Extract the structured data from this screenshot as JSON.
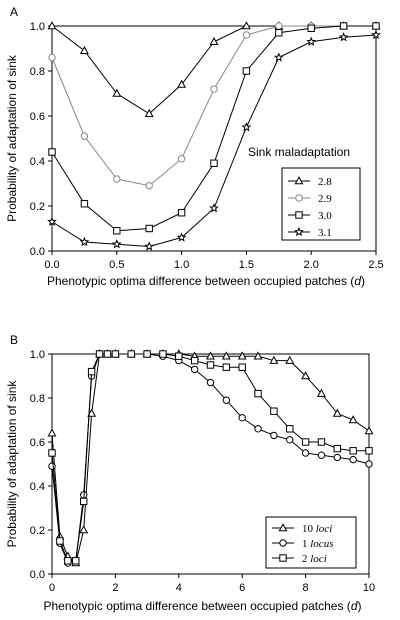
{
  "chart_data": [
    {
      "panel": "A",
      "type": "line",
      "xlabel_main": "Phenotypic optima difference between occupied patches (",
      "xlabel_var": "d",
      "xlabel_end": ")",
      "ylabel": "Probability of adaptation of sink",
      "xlim": [
        0,
        2.5
      ],
      "ylim": [
        0,
        1.0
      ],
      "xticks": [
        "0.0",
        "0.5",
        "1.0",
        "1.5",
        "2.0",
        "2.5"
      ],
      "xtick_values": [
        0,
        0.5,
        1.0,
        1.5,
        2.0,
        2.5
      ],
      "yticks": [
        "0.0",
        "0.2",
        "0.4",
        "0.6",
        "0.8",
        "1.0"
      ],
      "ytick_values": [
        0,
        0.2,
        0.4,
        0.6,
        0.8,
        1.0
      ],
      "legend_title": "Sink maladaptation",
      "legend_position": "right",
      "grid": false,
      "x": [
        0,
        0.25,
        0.5,
        0.75,
        1.0,
        1.25,
        1.5,
        1.75,
        2.0,
        2.25,
        2.5
      ],
      "series": [
        {
          "name": "2.8",
          "marker": "triangle",
          "color": "#000000",
          "values": [
            1.0,
            0.89,
            0.7,
            0.61,
            0.74,
            0.93,
            1.0,
            1.0,
            1.0,
            1.0,
            1.0
          ]
        },
        {
          "name": "2.9",
          "marker": "circle",
          "color": "#888888",
          "values": [
            0.86,
            0.51,
            0.32,
            0.29,
            0.41,
            0.72,
            0.96,
            1.0,
            1.0,
            1.0,
            1.0
          ]
        },
        {
          "name": "3.0",
          "marker": "square",
          "color": "#000000",
          "values": [
            0.44,
            0.21,
            0.09,
            0.1,
            0.17,
            0.39,
            0.8,
            0.97,
            0.99,
            1.0,
            1.0
          ]
        },
        {
          "name": "3.1",
          "marker": "star",
          "color": "#000000",
          "values": [
            0.13,
            0.04,
            0.03,
            0.02,
            0.06,
            0.19,
            0.55,
            0.86,
            0.93,
            0.95,
            0.96
          ]
        }
      ]
    },
    {
      "panel": "B",
      "type": "line",
      "xlabel_main": "Phenotypic optima difference between occupied patches (",
      "xlabel_var": "d",
      "xlabel_end": ")",
      "ylabel": "Probability of adaptation of sink",
      "xlim": [
        0,
        10
      ],
      "ylim": [
        0,
        1.0
      ],
      "xticks": [
        "0",
        "2",
        "4",
        "6",
        "8",
        "10"
      ],
      "xtick_values": [
        0,
        2,
        4,
        6,
        8,
        10
      ],
      "yticks": [
        "0.0",
        "0.2",
        "0.4",
        "0.6",
        "0.8",
        "1.0"
      ],
      "ytick_values": [
        0,
        0.2,
        0.4,
        0.6,
        0.8,
        1.0
      ],
      "legend_position": "bottom-right",
      "grid": false,
      "series": [
        {
          "name_num": "10",
          "name_word": "loci",
          "marker": "triangle",
          "color": "#000000",
          "x": [
            0,
            0.25,
            0.5,
            0.75,
            1.0,
            1.25,
            1.5,
            1.75,
            2,
            2.5,
            3,
            3.5,
            4,
            4.5,
            5,
            5.5,
            6,
            6.5,
            7,
            7.5,
            8,
            8.5,
            9,
            9.5,
            10
          ],
          "values": [
            0.64,
            0.17,
            0.08,
            0.05,
            0.2,
            0.73,
            1.0,
            1.0,
            1.0,
            1.0,
            1.0,
            1.0,
            1.0,
            0.99,
            0.99,
            0.99,
            0.99,
            0.99,
            0.97,
            0.97,
            0.9,
            0.82,
            0.73,
            0.7,
            0.65
          ]
        },
        {
          "name_num": "1",
          "name_word": "locus",
          "marker": "circle",
          "color": "#000000",
          "x": [
            0,
            0.25,
            0.5,
            0.75,
            1.0,
            1.25,
            1.5,
            1.75,
            2,
            2.5,
            3,
            3.5,
            4,
            4.5,
            5,
            5.5,
            6,
            6.5,
            7,
            7.5,
            8,
            8.5,
            9,
            9.5,
            10
          ],
          "values": [
            0.49,
            0.14,
            0.05,
            0.06,
            0.36,
            0.9,
            1.0,
            1.0,
            1.0,
            1.0,
            1.0,
            0.99,
            0.97,
            0.93,
            0.87,
            0.79,
            0.71,
            0.66,
            0.63,
            0.61,
            0.55,
            0.54,
            0.53,
            0.52,
            0.5
          ]
        },
        {
          "name_num": "2",
          "name_word": "loci",
          "marker": "square",
          "color": "#000000",
          "x": [
            0,
            0.25,
            0.5,
            0.75,
            1.0,
            1.25,
            1.5,
            1.75,
            2,
            2.5,
            3,
            3.5,
            4,
            4.5,
            5,
            5.5,
            6,
            6.5,
            7,
            7.5,
            8,
            8.5,
            9,
            9.5,
            10
          ],
          "values": [
            0.55,
            0.15,
            0.06,
            0.06,
            0.33,
            0.92,
            1.0,
            1.0,
            1.0,
            1.0,
            1.0,
            1.0,
            0.99,
            0.97,
            0.95,
            0.94,
            0.94,
            0.82,
            0.74,
            0.66,
            0.6,
            0.6,
            0.57,
            0.56,
            0.56
          ]
        }
      ]
    }
  ]
}
